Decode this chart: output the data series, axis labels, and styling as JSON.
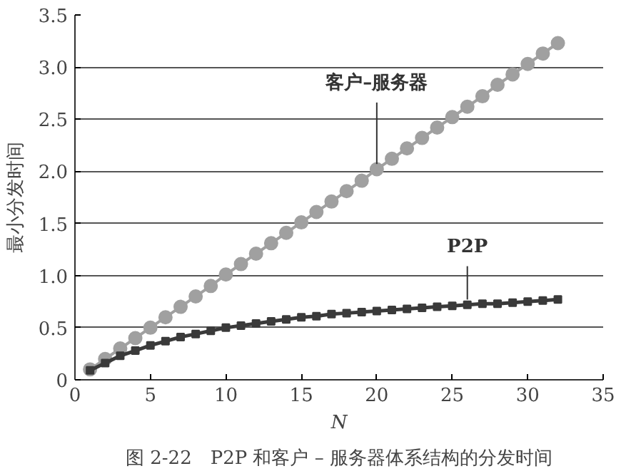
{
  "chart_data": {
    "type": "line",
    "x": [
      1,
      2,
      3,
      4,
      5,
      6,
      7,
      8,
      9,
      10,
      11,
      12,
      13,
      14,
      15,
      16,
      17,
      18,
      19,
      20,
      21,
      22,
      23,
      24,
      25,
      26,
      27,
      28,
      29,
      30,
      31,
      32
    ],
    "series": [
      {
        "name": "客户–服务器",
        "color": "#a0a0a0",
        "marker": "circle",
        "values": [
          0.1,
          0.2,
          0.3,
          0.4,
          0.5,
          0.6,
          0.7,
          0.8,
          0.9,
          1.01,
          1.11,
          1.21,
          1.31,
          1.41,
          1.51,
          1.61,
          1.71,
          1.81,
          1.91,
          2.02,
          2.12,
          2.22,
          2.32,
          2.42,
          2.52,
          2.62,
          2.72,
          2.83,
          2.93,
          3.03,
          3.13,
          3.23
        ]
      },
      {
        "name": "P2P",
        "color": "#3a3a3a",
        "marker": "square",
        "values": [
          0.09,
          0.16,
          0.23,
          0.28,
          0.33,
          0.37,
          0.41,
          0.44,
          0.47,
          0.5,
          0.52,
          0.54,
          0.56,
          0.58,
          0.6,
          0.61,
          0.63,
          0.64,
          0.65,
          0.66,
          0.67,
          0.68,
          0.69,
          0.7,
          0.71,
          0.72,
          0.73,
          0.73,
          0.74,
          0.75,
          0.76,
          0.77
        ]
      }
    ],
    "xlabel": "N",
    "ylabel": "最小分发时间",
    "xlim": [
      0,
      35
    ],
    "xticks": [
      0,
      5,
      10,
      15,
      20,
      25,
      30,
      35
    ],
    "ylim": [
      0,
      3.5
    ],
    "yticks": [
      0,
      {
        "value": 0.5,
        "label": "0.5"
      },
      {
        "value": 1,
        "label": "1.0"
      },
      {
        "value": 1.5,
        "label": "1.5"
      },
      {
        "value": 2,
        "label": "2.0"
      },
      {
        "value": 2.5,
        "label": "2.5"
      },
      {
        "value": 3,
        "label": "3.0"
      },
      {
        "value": 3.5,
        "label": "3.5"
      }
    ],
    "grid": "y",
    "legend": false,
    "annotations": [
      "图 2-22　P2P 和客户 – 服务器体系结构的分发时间"
    ]
  }
}
